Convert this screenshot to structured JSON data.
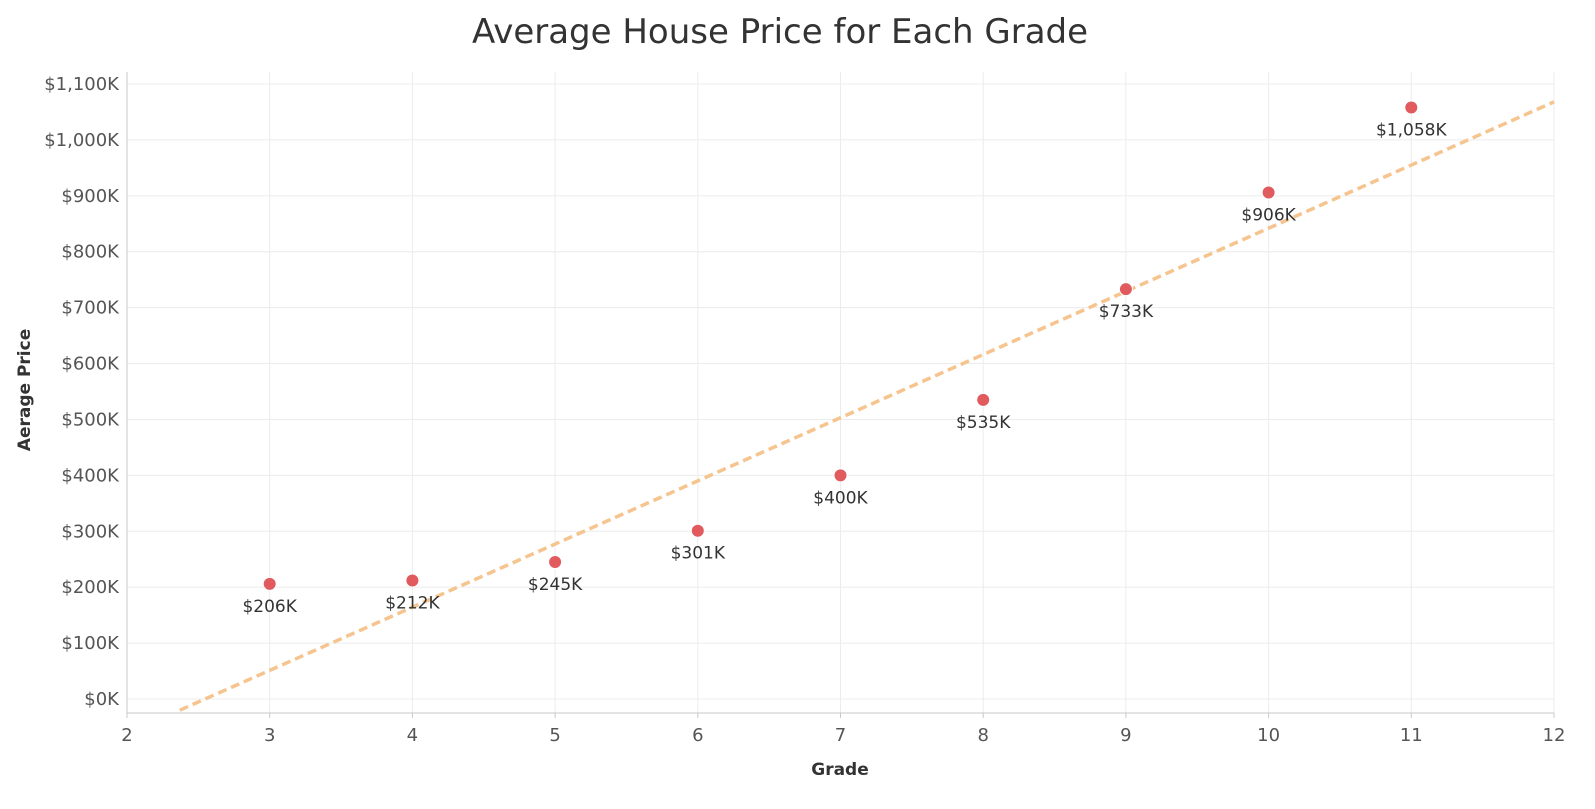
{
  "chart_data": {
    "type": "scatter",
    "title": "Average House Price for Each Grade",
    "xlabel": "Grade",
    "ylabel": "Aerage Price",
    "xlim": [
      2,
      12
    ],
    "ylim": [
      0,
      1100
    ],
    "x_ticks": [
      2,
      3,
      4,
      5,
      6,
      7,
      8,
      9,
      10,
      11,
      12
    ],
    "y_ticks": [
      0,
      100,
      200,
      300,
      400,
      500,
      600,
      700,
      800,
      900,
      1000,
      1100
    ],
    "y_tick_labels": [
      "$0K",
      "$100K",
      "$200K",
      "$300K",
      "$400K",
      "$500K",
      "$600K",
      "$700K",
      "$800K",
      "$900K",
      "$1,000K",
      "$1,100K"
    ],
    "grid": true,
    "points": [
      {
        "x": 3,
        "y": 206,
        "label": "$206K"
      },
      {
        "x": 4,
        "y": 212,
        "label": "$212K"
      },
      {
        "x": 5,
        "y": 245,
        "label": "$245K"
      },
      {
        "x": 6,
        "y": 301,
        "label": "$301K"
      },
      {
        "x": 7,
        "y": 400,
        "label": "$400K"
      },
      {
        "x": 8,
        "y": 535,
        "label": "$535K"
      },
      {
        "x": 9,
        "y": 733,
        "label": "$733K"
      },
      {
        "x": 10,
        "y": 906,
        "label": "$906K"
      },
      {
        "x": 11,
        "y": 1058,
        "label": "$1,058K"
      }
    ],
    "trend_line": {
      "style": "dashed",
      "start": {
        "x": 2.37,
        "y": -20
      },
      "end": {
        "x": 12,
        "y": 1068
      }
    },
    "colors": {
      "point": "#e05a5e",
      "trend_line": "#f5c48f",
      "grid": "#ececec"
    }
  }
}
